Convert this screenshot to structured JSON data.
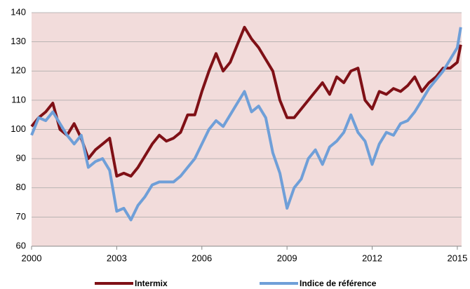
{
  "chart_data": {
    "type": "line",
    "x": [
      2000,
      2000.25,
      2000.5,
      2000.75,
      2001,
      2001.25,
      2001.5,
      2001.75,
      2002,
      2002.25,
      2002.5,
      2002.75,
      2003,
      2003.25,
      2003.5,
      2003.75,
      2004,
      2004.25,
      2004.5,
      2004.75,
      2005,
      2005.25,
      2005.5,
      2005.75,
      2006,
      2006.25,
      2006.5,
      2006.75,
      2007,
      2007.25,
      2007.5,
      2007.75,
      2008,
      2008.25,
      2008.5,
      2008.75,
      2009,
      2009.25,
      2009.5,
      2009.75,
      2010,
      2010.25,
      2010.5,
      2010.75,
      2011,
      2011.25,
      2011.5,
      2011.75,
      2012,
      2012.25,
      2012.5,
      2012.75,
      2013,
      2013.25,
      2013.5,
      2013.75,
      2014,
      2014.25,
      2014.5,
      2014.75,
      2015,
      2015.12
    ],
    "series": [
      {
        "name": "Intermix",
        "color": "#7f1016",
        "values": [
          101,
          104,
          106,
          109,
          100,
          98,
          102,
          97,
          90,
          93,
          95,
          97,
          84,
          85,
          84,
          87,
          91,
          95,
          98,
          96,
          97,
          99,
          105,
          105,
          113,
          120,
          126,
          120,
          123,
          129,
          135,
          131,
          128,
          124,
          120,
          110,
          104,
          104,
          107,
          110,
          113,
          116,
          112,
          118,
          116,
          120,
          121,
          110,
          107,
          113,
          112,
          114,
          113,
          115,
          118,
          113,
          116,
          118,
          121,
          121,
          123,
          129
        ]
      },
      {
        "name": "Indice de référence",
        "color": "#6f9fd8",
        "values": [
          98,
          104,
          103,
          106,
          102,
          98,
          95,
          98,
          87,
          89,
          90,
          86,
          72,
          73,
          69,
          74,
          77,
          81,
          82,
          82,
          82,
          84,
          87,
          90,
          95,
          100,
          103,
          101,
          105,
          109,
          113,
          106,
          108,
          104,
          92,
          85,
          73,
          80,
          83,
          90,
          93,
          88,
          94,
          96,
          99,
          105,
          99,
          96,
          88,
          95,
          99,
          98,
          102,
          103,
          106,
          110,
          114,
          117,
          120,
          124,
          128,
          135
        ]
      }
    ],
    "xlim": [
      2000,
      2015.15
    ],
    "xticks": [
      2000,
      2003,
      2006,
      2009,
      2012,
      2015
    ],
    "ylim": [
      60,
      140
    ],
    "yticks": [
      60,
      70,
      80,
      90,
      100,
      110,
      120,
      130,
      140
    ],
    "grid": true,
    "legend": "bottom"
  }
}
